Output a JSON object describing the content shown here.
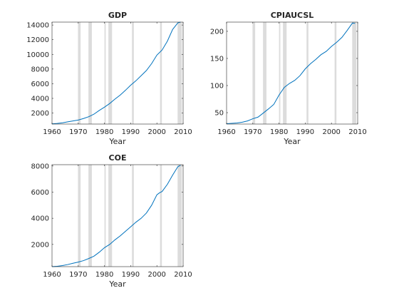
{
  "chart_data": [
    {
      "type": "line",
      "title": "GDP",
      "xlabel": "Year",
      "ylabel": "",
      "xlim": [
        1960,
        2010
      ],
      "ylim": [
        500,
        14400
      ],
      "xticks": [
        1960,
        1970,
        1980,
        1990,
        2000,
        2010
      ],
      "yticks": [
        2000,
        4000,
        6000,
        8000,
        10000,
        12000,
        14000
      ],
      "recessions": [
        [
          1969.9,
          1970.9
        ],
        [
          1973.9,
          1975.2
        ],
        [
          1980.0,
          1980.5
        ],
        [
          1981.5,
          1982.9
        ],
        [
          1990.5,
          1991.2
        ],
        [
          2001.2,
          2001.9
        ],
        [
          2007.9,
          2009.5
        ]
      ],
      "series": [
        {
          "color": "#0072BD",
          "x": [
            1960,
            1962,
            1964,
            1966,
            1968,
            1970,
            1972,
            1974,
            1976,
            1978,
            1980,
            1982,
            1984,
            1986,
            1988,
            1990,
            1992,
            1994,
            1996,
            1998,
            2000,
            2002,
            2004,
            2006,
            2008,
            2009
          ],
          "y": [
            530,
            590,
            670,
            800,
            920,
            1050,
            1250,
            1500,
            1850,
            2350,
            2800,
            3300,
            3900,
            4450,
            5100,
            5800,
            6400,
            7100,
            7800,
            8750,
            9900,
            10600,
            11800,
            13400,
            14300,
            14400
          ]
        }
      ]
    },
    {
      "type": "line",
      "title": "CPIAUCSL",
      "xlabel": "Year",
      "ylabel": "",
      "xlim": [
        1960,
        2010
      ],
      "ylim": [
        29,
        217
      ],
      "xticks": [
        1960,
        1970,
        1980,
        1990,
        2000,
        2010
      ],
      "yticks": [
        50,
        100,
        150,
        200
      ],
      "recessions": [
        [
          1969.9,
          1970.9
        ],
        [
          1973.9,
          1975.2
        ],
        [
          1980.0,
          1980.5
        ],
        [
          1981.5,
          1982.9
        ],
        [
          1990.5,
          1991.2
        ],
        [
          2001.2,
          2001.9
        ],
        [
          2007.9,
          2009.5
        ]
      ],
      "series": [
        {
          "color": "#0072BD",
          "x": [
            1960,
            1962,
            1964,
            1966,
            1968,
            1970,
            1972,
            1974,
            1976,
            1978,
            1980,
            1982,
            1984,
            1986,
            1988,
            1990,
            1992,
            1994,
            1996,
            1998,
            2000,
            2002,
            2004,
            2006,
            2008,
            2009
          ],
          "y": [
            29.6,
            30.3,
            31.0,
            32.5,
            34.8,
            38.8,
            41.8,
            49.3,
            57.0,
            65.2,
            82.4,
            96.5,
            103.9,
            109.6,
            118.3,
            130.7,
            140.3,
            148.2,
            156.9,
            163.0,
            172.2,
            179.9,
            188.9,
            201.6,
            215.3,
            214.5
          ]
        }
      ]
    },
    {
      "type": "line",
      "title": "COE",
      "xlabel": "Year",
      "ylabel": "",
      "xlim": [
        1960,
        2010
      ],
      "ylim": [
        300,
        8100
      ],
      "xticks": [
        1960,
        1970,
        1980,
        1990,
        2000,
        2010
      ],
      "yticks": [
        2000,
        4000,
        6000,
        8000
      ],
      "recessions": [
        [
          1969.9,
          1970.9
        ],
        [
          1973.9,
          1975.2
        ],
        [
          1980.0,
          1980.5
        ],
        [
          1981.5,
          1982.9
        ],
        [
          1990.5,
          1991.2
        ],
        [
          2001.2,
          2001.9
        ],
        [
          2007.9,
          2009.5
        ]
      ],
      "series": [
        {
          "color": "#0072BD",
          "x": [
            1960,
            1962,
            1964,
            1966,
            1968,
            1970,
            1972,
            1974,
            1976,
            1978,
            1980,
            1982,
            1984,
            1986,
            1988,
            1990,
            1992,
            1994,
            1996,
            1998,
            2000,
            2001,
            2002,
            2004,
            2006,
            2008,
            2009
          ],
          "y": [
            300,
            330,
            380,
            460,
            560,
            650,
            760,
            920,
            1100,
            1400,
            1750,
            2000,
            2350,
            2650,
            3000,
            3350,
            3700,
            4000,
            4400,
            5000,
            5800,
            5950,
            6050,
            6600,
            7300,
            7950,
            8050
          ]
        }
      ]
    }
  ]
}
